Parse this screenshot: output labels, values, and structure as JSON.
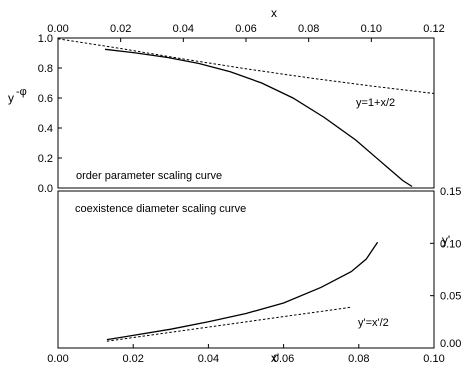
{
  "chart_data": [
    {
      "type": "line",
      "xlabel": "x",
      "ylabel": "y",
      "ylabel_superscript": "-φ",
      "xlim": [
        0,
        0.12
      ],
      "ylim": [
        0,
        1.0
      ],
      "xticks": [
        0.0,
        0.02,
        0.04,
        0.06,
        0.08,
        0.1,
        0.12
      ],
      "xtick_labels": [
        "0.00",
        "0.02",
        "0.04",
        "0.06",
        "0.08",
        "0.10",
        "0.12"
      ],
      "yticks": [
        0.0,
        0.2,
        0.4,
        0.6,
        0.8,
        1.0
      ],
      "ytick_labels": [
        "0.0",
        "0.2",
        "0.4",
        "0.6",
        "0.8",
        "1.0"
      ],
      "x_axis_position": "top",
      "y_axis_position": "left",
      "grid": false,
      "annotation": "order parameter scaling curve",
      "series": [
        {
          "style": "solid",
          "x": [
            0.015,
            0.025,
            0.035,
            0.045,
            0.055,
            0.065,
            0.075,
            0.085,
            0.095,
            0.105,
            0.11,
            0.113
          ],
          "y": [
            0.925,
            0.9,
            0.87,
            0.83,
            0.775,
            0.7,
            0.6,
            0.47,
            0.32,
            0.14,
            0.05,
            0.01
          ]
        },
        {
          "name": "y=1+x/2",
          "style": "dashed",
          "x": [
            0.0,
            0.02,
            0.04,
            0.06,
            0.08,
            0.1,
            0.12
          ],
          "y": [
            0.995,
            0.93,
            0.86,
            0.795,
            0.735,
            0.68,
            0.63
          ]
        }
      ]
    },
    {
      "type": "line",
      "xlabel": "x'",
      "ylabel": "y'",
      "xlim": [
        0,
        0.1
      ],
      "ylim": [
        0,
        0.15
      ],
      "xticks": [
        0.0,
        0.02,
        0.04,
        0.06,
        0.08,
        0.1
      ],
      "xtick_labels": [
        "0.00",
        "0.02",
        "0.04",
        "0.06",
        "0.08",
        "0.10"
      ],
      "yticks": [
        0.0,
        0.05,
        0.1,
        0.15
      ],
      "ytick_labels": [
        "0.00",
        "0.05",
        "0.10",
        "0.15"
      ],
      "x_axis_position": "bottom",
      "y_axis_position": "right",
      "grid": false,
      "annotation": "coexistence diameter scaling curve",
      "series": [
        {
          "style": "solid",
          "x": [
            0.013,
            0.02,
            0.03,
            0.04,
            0.05,
            0.06,
            0.07,
            0.078,
            0.082,
            0.085
          ],
          "y": [
            0.008,
            0.012,
            0.018,
            0.025,
            0.033,
            0.043,
            0.058,
            0.073,
            0.085,
            0.101
          ]
        },
        {
          "name": "y'=x'/2",
          "style": "dashed",
          "x": [
            0.013,
            0.078
          ],
          "y": [
            0.0065,
            0.039
          ]
        }
      ]
    }
  ]
}
